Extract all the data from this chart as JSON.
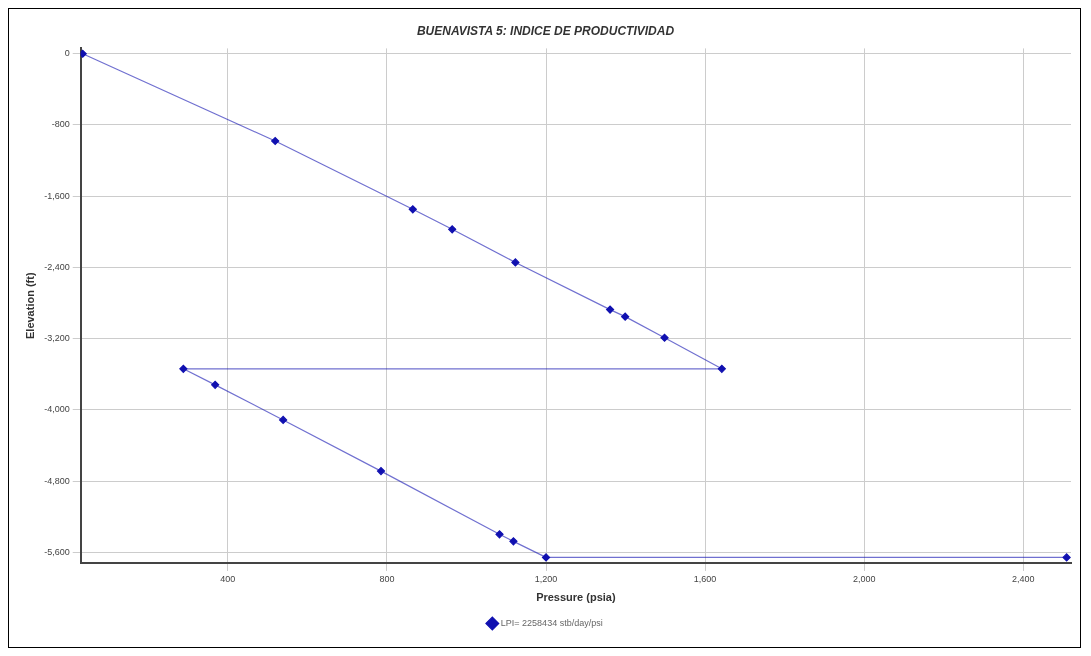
{
  "chart_data": {
    "type": "line",
    "title": "BUENAVISTA 5: INDICE DE PRODUCTIVIDAD",
    "xlabel": "Pressure (psia)",
    "ylabel": "Elevation (ft)",
    "series": [
      {
        "name": "LPI= 2258434 stb/day/psi",
        "color": "#1010b0",
        "x": [
          35,
          519,
          865,
          964,
          1123,
          1361,
          1399,
          1498,
          1642,
          288,
          368,
          539,
          785,
          1083,
          1118,
          1200,
          2509
        ],
        "values": [
          0,
          -980,
          -1747,
          -1972,
          -2344,
          -2874,
          -2953,
          -3190,
          -3539,
          -3539,
          -3719,
          -4113,
          -4688,
          -5398,
          -5477,
          -5657,
          -5657
        ]
      }
    ],
    "xlim": [
      30,
      2520
    ],
    "ylim": [
      -5720,
      60
    ],
    "xticks": [
      400,
      800,
      {
        "value": 1200,
        "label": "1,200"
      },
      {
        "value": 1600,
        "label": "1,600"
      },
      {
        "value": 2000,
        "label": "2,000"
      },
      {
        "value": 2400,
        "label": "2,400"
      }
    ],
    "yticks": [
      0,
      -800,
      {
        "value": -1600,
        "label": "-1,600"
      },
      {
        "value": -2400,
        "label": "-2,400"
      },
      {
        "value": -3200,
        "label": "-3,200"
      },
      {
        "value": -4000,
        "label": "-4,000"
      },
      {
        "value": -4800,
        "label": "-4,800"
      },
      {
        "value": -5600,
        "label": "-5,600"
      }
    ],
    "grid": true,
    "legend": "bottom",
    "marker": "diamond",
    "line_style": "solid"
  }
}
